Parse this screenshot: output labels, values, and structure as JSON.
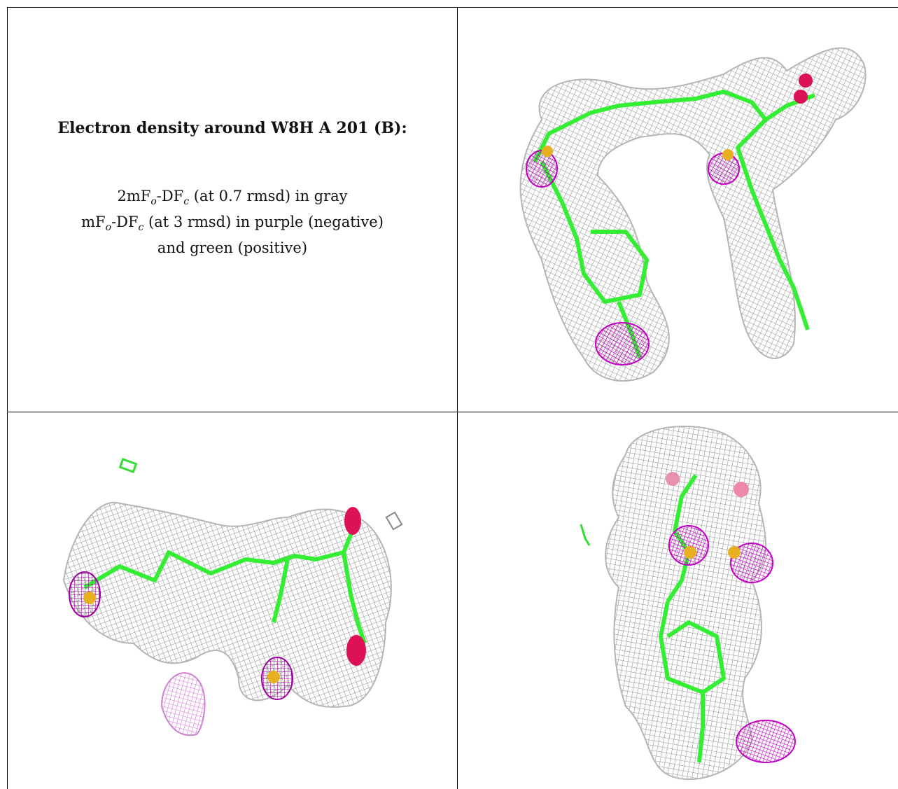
{
  "title": "Electron density around W8H A 201 (B):",
  "legend": {
    "line1_prefix": "2mF",
    "line1_sub1": "o",
    "line1_mid": "-DF",
    "line1_sub2": "c",
    "line1_suffix": " (at 0.7 rmsd) in gray",
    "line2_prefix": "mF",
    "line2_sub1": "o",
    "line2_mid": "-DF",
    "line2_sub2": "c",
    "line2_suffix": " (at 3 rmsd) in purple (negative)",
    "line3": "and green (positive)"
  },
  "colors": {
    "mesh_gray": "#9a9a9a",
    "model_green": "#33ee33",
    "negative_purple": "#cc00cc",
    "oxygen_red": "#dd1155",
    "sulfur_yellow": "#e8b020"
  },
  "panels": [
    "density-view-1",
    "density-view-2",
    "density-view-3"
  ]
}
